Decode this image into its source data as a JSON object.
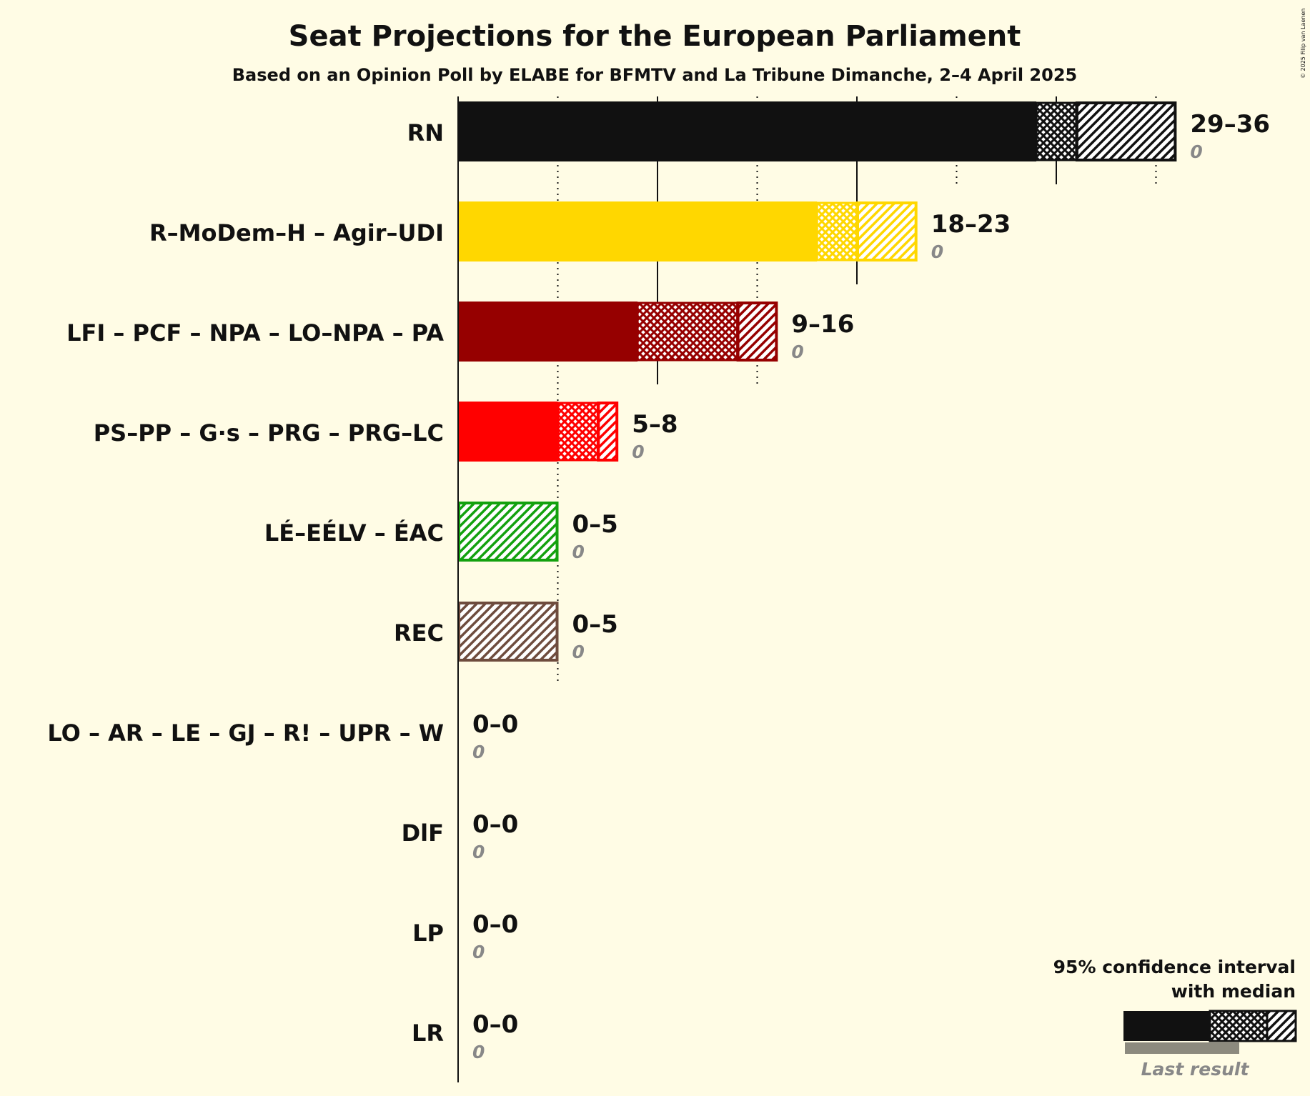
{
  "chart_data": {
    "type": "bar",
    "title": "Seat Projections for the European Parliament",
    "subtitle": "Based on an Opinion Poll by ELABE for BFMTV and La Tribune Dimanche, 2–4 April 2025",
    "copyright": "© 2025 Filip van Laenen",
    "xlim": [
      0,
      36
    ],
    "major_ticks": [
      10,
      20,
      30
    ],
    "minor_ticks": [
      5,
      15,
      25,
      35
    ],
    "series": [
      {
        "party": "RN",
        "low": 29,
        "median": 31,
        "high": 36,
        "last": 0,
        "range_label": "29–36",
        "last_label": "0",
        "color": "#111111"
      },
      {
        "party": "R–MoDem–H – Agir–UDI",
        "low": 18,
        "median": 20,
        "high": 23,
        "last": 0,
        "range_label": "18–23",
        "last_label": "0",
        "color": "#FFD700"
      },
      {
        "party": "LFI – PCF – NPA – LO–NPA – PA",
        "low": 9,
        "median": 14,
        "high": 16,
        "last": 0,
        "range_label": "9–16",
        "last_label": "0",
        "color": "#960000"
      },
      {
        "party": "PS–PP – G·s – PRG – PRG–LC",
        "low": 5,
        "median": 7,
        "high": 8,
        "last": 0,
        "range_label": "5–8",
        "last_label": "0",
        "color": "#FF0000"
      },
      {
        "party": "LÉ–EÉLV – ÉAC",
        "low": 0,
        "median": 0,
        "high": 5,
        "last": 0,
        "range_label": "0–5",
        "last_label": "0",
        "color": "#13A10E"
      },
      {
        "party": "REC",
        "low": 0,
        "median": 0,
        "high": 5,
        "last": 0,
        "range_label": "0–5",
        "last_label": "0",
        "color": "#6E4C3E"
      },
      {
        "party": "LO – AR – LE – GJ – R! – UPR – W",
        "low": 0,
        "median": 0,
        "high": 0,
        "last": 0,
        "range_label": "0–0",
        "last_label": "0",
        "color": "#888888"
      },
      {
        "party": "DlF",
        "low": 0,
        "median": 0,
        "high": 0,
        "last": 0,
        "range_label": "0–0",
        "last_label": "0",
        "color": "#888888"
      },
      {
        "party": "LP",
        "low": 0,
        "median": 0,
        "high": 0,
        "last": 0,
        "range_label": "0–0",
        "last_label": "0",
        "color": "#888888"
      },
      {
        "party": "LR",
        "low": 0,
        "median": 0,
        "high": 0,
        "last": 0,
        "range_label": "0–0",
        "last_label": "0",
        "color": "#888888"
      }
    ],
    "legend": {
      "title_line1": "95% confidence interval",
      "title_line2": "with median",
      "last_result": "Last result"
    }
  }
}
